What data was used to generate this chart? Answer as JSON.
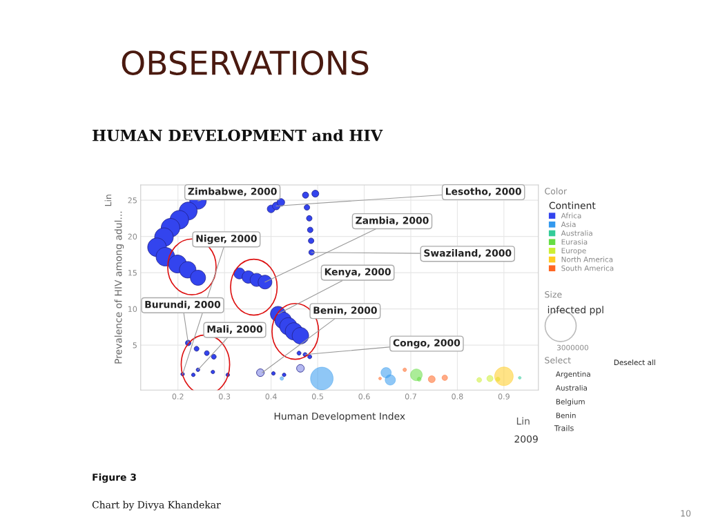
{
  "chart_data": {
    "type": "bubble",
    "title": "OBSERVATIONS",
    "subtitle": "HUMAN DEVELOPMENT and HIV",
    "xlabel": "Human Development Index",
    "ylabel": "Prevalence of HIV among adul...",
    "legend_title": "Continent",
    "legend": "right",
    "grid": true,
    "xlim": [
      0.12,
      0.974
    ],
    "ylim": [
      -1.2,
      27.1
    ],
    "xticks": [
      0.2,
      0.3,
      0.4,
      0.5,
      0.6,
      0.7,
      0.8,
      0.9
    ],
    "yticks": [
      5,
      10,
      15,
      20,
      25
    ],
    "size_legend": [
      3000000
    ],
    "series": [
      {
        "name": "Africa",
        "color": "#3344ee",
        "x": [
          0.243,
          0.222,
          0.203,
          0.184,
          0.17,
          0.155,
          0.173,
          0.199,
          0.221,
          0.243,
          0.332,
          0.351,
          0.369,
          0.387,
          0.415,
          0.426,
          0.437,
          0.449,
          0.463,
          0.4,
          0.411,
          0.421,
          0.474,
          0.495,
          0.477,
          0.482,
          0.484,
          0.486,
          0.487,
          0.46,
          0.473,
          0.483,
          0.222,
          0.24,
          0.262,
          0.277,
          0.21,
          0.233,
          0.243,
          0.275,
          0.307,
          0.381,
          0.405,
          0.428,
          0.377,
          0.463
        ],
        "values": [
          24.9,
          23.5,
          22.3,
          21.2,
          19.9,
          18.5,
          17.2,
          16.2,
          15.4,
          14.3,
          14.9,
          14.4,
          14.0,
          13.7,
          9.3,
          8.4,
          7.6,
          6.9,
          6.3,
          23.8,
          24.2,
          24.7,
          25.7,
          25.9,
          24.0,
          22.5,
          20.9,
          19.4,
          17.8,
          3.9,
          3.7,
          3.4,
          5.3,
          4.5,
          3.9,
          3.4,
          1.0,
          0.9,
          1.6,
          1.3,
          0.9,
          1.2,
          1.1,
          0.9,
          1.2,
          1.8
        ],
        "sizes": [
          850000,
          1000000,
          1080000,
          1080000,
          1080000,
          1080000,
          1080000,
          1000000,
          850000,
          720000,
          380000,
          480000,
          530000,
          590000,
          720000,
          850000,
          930000,
          930000,
          850000,
          180000,
          180000,
          180000,
          120000,
          150000,
          95000,
          95000,
          95000,
          95000,
          95000,
          50000,
          50000,
          50000,
          95000,
          73000,
          73000,
          73000,
          40000,
          40000,
          40000,
          40000,
          40000,
          40000,
          40000,
          40000,
          180000,
          180000
        ],
        "colors": [
          "#3344ee",
          "#3344ee",
          "#3344ee",
          "#3344ee",
          "#3344ee",
          "#3344ee",
          "#3344ee",
          "#3344ee",
          "#3344ee",
          "#3344ee",
          "#3344ee",
          "#3344ee",
          "#3344ee",
          "#3344ee",
          "#3344ee",
          "#3344ee",
          "#3344ee",
          "#3344ee",
          "#3344ee",
          "#3344ee",
          "#3344ee",
          "#3344ee",
          "#3344ee",
          "#3344ee",
          "#3344ee",
          "#3344ee",
          "#3344ee",
          "#3344ee",
          "#3344ee",
          "#3344ee",
          "#3344ee",
          "#3344ee",
          "#3344ee",
          "#3344ee",
          "#3344ee",
          "#3344ee",
          "#3344ee",
          "#3344ee",
          "#3344ee",
          "#3344ee",
          "#3344ee",
          "#3344ee",
          "#3344ee",
          "#3344ee",
          "#b4b8f0",
          "#b4b8f0"
        ]
      },
      {
        "name": "Asia",
        "color": "#3399ee",
        "x": [
          0.509,
          0.423,
          0.647,
          0.656
        ],
        "values": [
          0.4,
          0.4,
          1.2,
          0.2
        ],
        "sizes": [
          1600000,
          40000,
          330000,
          330000
        ]
      },
      {
        "name": "Australia",
        "color": "#33cc99",
        "x": [
          0.934
        ],
        "values": [
          0.5
        ],
        "sizes": [
          24000
        ]
      },
      {
        "name": "Eurasia",
        "color": "#66dd44",
        "x": [
          0.712,
          0.718
        ],
        "values": [
          0.9,
          0.3
        ],
        "sizes": [
          430000,
          50000
        ]
      },
      {
        "name": "Europe",
        "color": "#ccee33",
        "x": [
          0.847,
          0.87,
          0.887
        ],
        "values": [
          0.2,
          0.4,
          0.3
        ],
        "sizes": [
          73000,
          120000,
          53000
        ]
      },
      {
        "name": "North America",
        "color": "#ffcc22",
        "x": [
          0.9
        ],
        "values": [
          0.7
        ],
        "sizes": [
          1080000
        ]
      },
      {
        "name": "South America",
        "color": "#ff6622",
        "x": [
          0.634,
          0.687,
          0.745,
          0.773
        ],
        "values": [
          0.4,
          1.6,
          0.3,
          0.5
        ],
        "sizes": [
          24000,
          40000,
          150000,
          95000
        ]
      }
    ],
    "annotations": [
      {
        "text": "Zimbabwe, 2000",
        "x": 0.243,
        "y": 24.9
      },
      {
        "text": "Lesotho, 2000",
        "x": 0.411,
        "y": 24.2
      },
      {
        "text": "Zambia, 2000",
        "x": 0.387,
        "y": 13.7
      },
      {
        "text": "Niger, 2000",
        "x": 0.21,
        "y": 1.0
      },
      {
        "text": "Swaziland, 2000",
        "x": 0.487,
        "y": 17.8
      },
      {
        "text": "Kenya, 2000",
        "x": 0.415,
        "y": 9.3
      },
      {
        "text": "Burundi, 2000",
        "x": 0.222,
        "y": 5.3
      },
      {
        "text": "Benin, 2000",
        "x": 0.381,
        "y": 1.2
      },
      {
        "text": "Mali, 2000",
        "x": 0.243,
        "y": 1.6
      },
      {
        "text": "Congo, 2000",
        "x": 0.473,
        "y": 3.7
      },
      "Lin",
      "Lin",
      "Color",
      "Size",
      "infected ppl",
      "Select",
      "Deselect all",
      "Argentina",
      "Australia",
      "Belgium",
      "Benin",
      "Trails",
      "2009",
      "Figure 3",
      "Chart by Divya Khandekar",
      "10"
    ]
  }
}
